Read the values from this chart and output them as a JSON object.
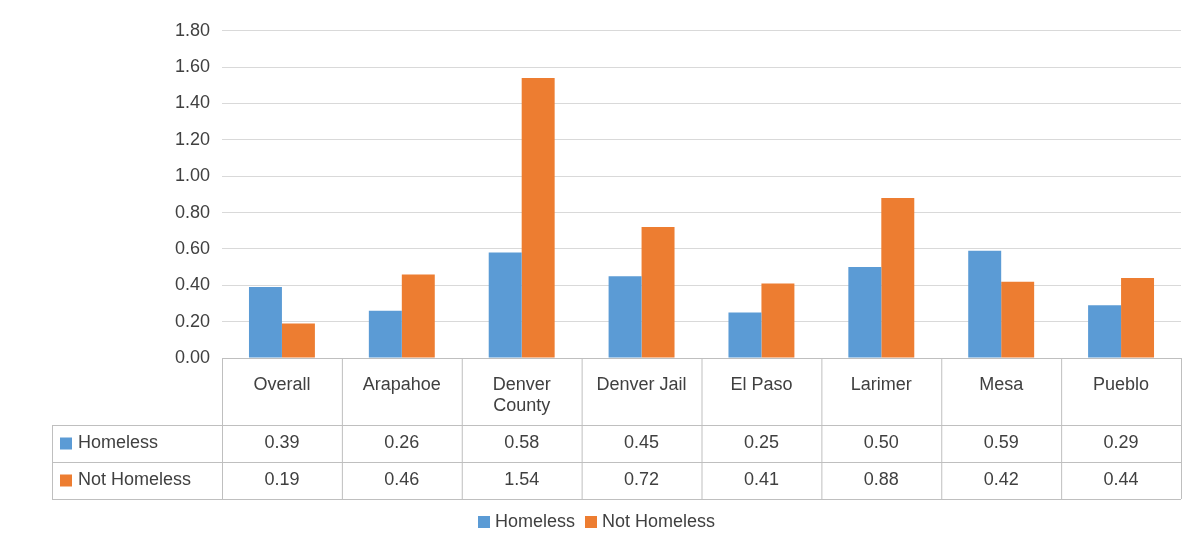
{
  "chart_data": {
    "type": "bar",
    "categories": [
      "Overall",
      "Arapahoe",
      "Denver County",
      "Denver Jail",
      "El Paso",
      "Larimer",
      "Mesa",
      "Pueblo"
    ],
    "series": [
      {
        "name": "Homeless",
        "color": "#5b9bd5",
        "values": [
          0.39,
          0.26,
          0.58,
          0.45,
          0.25,
          0.5,
          0.59,
          0.29
        ],
        "value_labels": [
          "0.39",
          "0.26",
          "0.58",
          "0.45",
          "0.25",
          "0.50",
          "0.59",
          "0.29"
        ]
      },
      {
        "name": "Not Homeless",
        "color": "#ed7d31",
        "values": [
          0.19,
          0.46,
          1.54,
          0.72,
          0.41,
          0.88,
          0.42,
          0.44
        ],
        "value_labels": [
          "0.19",
          "0.46",
          "1.54",
          "0.72",
          "0.41",
          "0.88",
          "0.42",
          "0.44"
        ]
      }
    ],
    "ylim": [
      0,
      1.8
    ],
    "yticks": [
      {
        "value": 0,
        "label": "0.00"
      },
      {
        "value": 0.2,
        "label": "0.20"
      },
      {
        "value": 0.4,
        "label": "0.40"
      },
      {
        "value": 0.6,
        "label": "0.60"
      },
      {
        "value": 0.8,
        "label": "0.80"
      },
      {
        "value": 1,
        "label": "1.00"
      },
      {
        "value": 1.2,
        "label": "1.20"
      },
      {
        "value": 1.4,
        "label": "1.40"
      },
      {
        "value": 1.6,
        "label": "1.60"
      },
      {
        "value": 1.8,
        "label": "1.80"
      }
    ],
    "grid": "y",
    "legend": "bottom"
  }
}
